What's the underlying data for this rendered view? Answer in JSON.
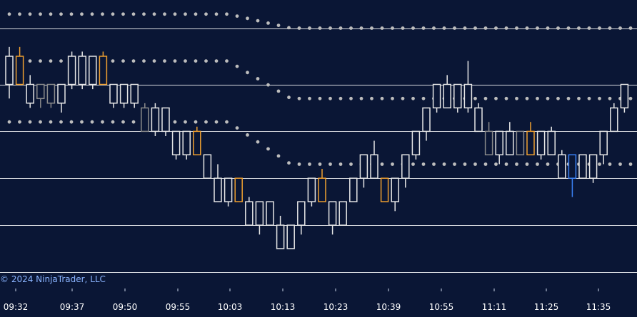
{
  "chart_data": {
    "type": "candlestick",
    "title": "",
    "xlabel": "",
    "ylabel": "",
    "grid": true,
    "copyright": "© 2024 NinjaTrader, LLC",
    "time_ticks": [
      "09:32",
      "09:37",
      "09:50",
      "09:55",
      "10:03",
      "10:13",
      "10:23",
      "10:39",
      "10:55",
      "11:11",
      "11:25",
      "11:35"
    ],
    "colors": {
      "background": "#0a1635",
      "up": "#e6e6e6",
      "down": "#e6e6e6",
      "highlight": "#f0a030",
      "gray": "#8b8b8b",
      "blue": "#3b82f6",
      "grid": "#ffffff",
      "dots": "#bdbdbd"
    },
    "bars": [
      {
        "o": 5.0,
        "h": 5.8,
        "l": 4.7,
        "c": 5.6,
        "color": "up"
      },
      {
        "o": 5.0,
        "h": 5.8,
        "l": 5.0,
        "c": 5.6,
        "color": "highlight"
      },
      {
        "o": 4.6,
        "h": 5.2,
        "l": 4.5,
        "c": 5.0,
        "color": "up"
      },
      {
        "o": 4.7,
        "h": 5.0,
        "l": 4.5,
        "c": 5.0,
        "color": "gray"
      },
      {
        "o": 4.6,
        "h": 5.0,
        "l": 4.5,
        "c": 5.0,
        "color": "gray"
      },
      {
        "o": 5.0,
        "h": 5.0,
        "l": 4.4,
        "c": 4.6,
        "color": "up"
      },
      {
        "o": 5.0,
        "h": 5.7,
        "l": 4.9,
        "c": 5.6,
        "color": "up"
      },
      {
        "o": 5.0,
        "h": 5.7,
        "l": 4.9,
        "c": 5.6,
        "color": "up"
      },
      {
        "o": 5.6,
        "h": 5.6,
        "l": 4.9,
        "c": 5.0,
        "color": "up"
      },
      {
        "o": 5.0,
        "h": 5.7,
        "l": 5.0,
        "c": 5.6,
        "color": "highlight"
      },
      {
        "o": 4.6,
        "h": 5.0,
        "l": 4.5,
        "c": 5.0,
        "color": "up"
      },
      {
        "o": 4.6,
        "h": 5.0,
        "l": 4.5,
        "c": 5.0,
        "color": "up"
      },
      {
        "o": 4.6,
        "h": 5.0,
        "l": 4.5,
        "c": 5.0,
        "color": "up"
      },
      {
        "o": 4.0,
        "h": 4.6,
        "l": 4.0,
        "c": 4.5,
        "color": "gray"
      },
      {
        "o": 4.0,
        "h": 4.6,
        "l": 3.9,
        "c": 4.5,
        "color": "up"
      },
      {
        "o": 4.0,
        "h": 4.5,
        "l": 3.9,
        "c": 4.5,
        "color": "up"
      },
      {
        "o": 4.0,
        "h": 4.0,
        "l": 3.4,
        "c": 3.5,
        "color": "up"
      },
      {
        "o": 4.0,
        "h": 4.0,
        "l": 3.4,
        "c": 3.5,
        "color": "up"
      },
      {
        "o": 3.5,
        "h": 4.1,
        "l": 3.5,
        "c": 4.0,
        "color": "highlight"
      },
      {
        "o": 3.5,
        "h": 3.5,
        "l": 3.0,
        "c": 3.0,
        "color": "up"
      },
      {
        "o": 2.5,
        "h": 3.3,
        "l": 2.5,
        "c": 3.0,
        "color": "up"
      },
      {
        "o": 2.5,
        "h": 3.0,
        "l": 2.4,
        "c": 3.0,
        "color": "up"
      },
      {
        "o": 2.5,
        "h": 3.0,
        "l": 2.5,
        "c": 3.0,
        "color": "highlight"
      },
      {
        "o": 2.0,
        "h": 2.6,
        "l": 2.0,
        "c": 2.5,
        "color": "up"
      },
      {
        "o": 2.0,
        "h": 2.5,
        "l": 1.8,
        "c": 2.5,
        "color": "up"
      },
      {
        "o": 2.0,
        "h": 2.5,
        "l": 2.0,
        "c": 2.5,
        "color": "up"
      },
      {
        "o": 1.5,
        "h": 2.2,
        "l": 1.5,
        "c": 2.0,
        "color": "up"
      },
      {
        "o": 1.5,
        "h": 2.0,
        "l": 1.5,
        "c": 2.0,
        "color": "up"
      },
      {
        "o": 2.0,
        "h": 2.5,
        "l": 1.8,
        "c": 2.5,
        "color": "up"
      },
      {
        "o": 2.5,
        "h": 3.0,
        "l": 2.4,
        "c": 3.0,
        "color": "up"
      },
      {
        "o": 2.5,
        "h": 3.2,
        "l": 2.5,
        "c": 3.0,
        "color": "highlight"
      },
      {
        "o": 2.0,
        "h": 2.5,
        "l": 1.8,
        "c": 2.5,
        "color": "up"
      },
      {
        "o": 2.0,
        "h": 2.5,
        "l": 2.0,
        "c": 2.5,
        "color": "up"
      },
      {
        "o": 2.5,
        "h": 3.0,
        "l": 2.5,
        "c": 3.0,
        "color": "up"
      },
      {
        "o": 3.0,
        "h": 3.5,
        "l": 2.8,
        "c": 3.5,
        "color": "up"
      },
      {
        "o": 3.0,
        "h": 3.8,
        "l": 3.0,
        "c": 3.5,
        "color": "up"
      },
      {
        "o": 2.5,
        "h": 3.0,
        "l": 2.5,
        "c": 3.0,
        "color": "highlight"
      },
      {
        "o": 2.5,
        "h": 3.0,
        "l": 2.3,
        "c": 3.0,
        "color": "up"
      },
      {
        "o": 3.0,
        "h": 3.5,
        "l": 2.8,
        "c": 3.5,
        "color": "up"
      },
      {
        "o": 3.5,
        "h": 4.0,
        "l": 3.4,
        "c": 4.0,
        "color": "up"
      },
      {
        "o": 4.0,
        "h": 4.5,
        "l": 3.8,
        "c": 4.5,
        "color": "up"
      },
      {
        "o": 4.5,
        "h": 5.0,
        "l": 4.4,
        "c": 5.0,
        "color": "up"
      },
      {
        "o": 4.5,
        "h": 5.2,
        "l": 4.5,
        "c": 5.0,
        "color": "up"
      },
      {
        "o": 4.5,
        "h": 5.0,
        "l": 4.4,
        "c": 5.0,
        "color": "up"
      },
      {
        "o": 4.5,
        "h": 5.5,
        "l": 4.4,
        "c": 5.0,
        "color": "up"
      },
      {
        "o": 4.0,
        "h": 4.6,
        "l": 4.0,
        "c": 4.5,
        "color": "up"
      },
      {
        "o": 3.5,
        "h": 4.2,
        "l": 3.5,
        "c": 4.0,
        "color": "gray"
      },
      {
        "o": 3.5,
        "h": 4.0,
        "l": 3.3,
        "c": 4.0,
        "color": "up"
      },
      {
        "o": 3.5,
        "h": 4.2,
        "l": 3.5,
        "c": 4.0,
        "color": "up"
      },
      {
        "o": 3.5,
        "h": 4.0,
        "l": 3.5,
        "c": 4.0,
        "color": "gray"
      },
      {
        "o": 3.5,
        "h": 4.2,
        "l": 3.5,
        "c": 4.0,
        "color": "highlight"
      },
      {
        "o": 3.5,
        "h": 4.0,
        "l": 3.4,
        "c": 4.0,
        "color": "up"
      },
      {
        "o": 3.5,
        "h": 4.1,
        "l": 3.5,
        "c": 4.0,
        "color": "up"
      },
      {
        "o": 3.0,
        "h": 3.6,
        "l": 3.0,
        "c": 3.5,
        "color": "up"
      },
      {
        "o": 3.0,
        "h": 3.5,
        "l": 2.6,
        "c": 3.5,
        "color": "blue"
      },
      {
        "o": 3.0,
        "h": 3.5,
        "l": 3.0,
        "c": 3.5,
        "color": "up"
      },
      {
        "o": 3.0,
        "h": 3.5,
        "l": 2.9,
        "c": 3.5,
        "color": "up"
      },
      {
        "o": 3.5,
        "h": 4.0,
        "l": 3.3,
        "c": 4.0,
        "color": "up"
      },
      {
        "o": 4.0,
        "h": 4.6,
        "l": 4.0,
        "c": 4.5,
        "color": "up"
      },
      {
        "o": 4.5,
        "h": 5.0,
        "l": 4.4,
        "c": 5.0,
        "color": "up"
      }
    ],
    "dot_bands": [
      {
        "name": "upper",
        "pre": 6.5,
        "post": 6.2,
        "transition_from": 21,
        "transition_to": 27
      },
      {
        "name": "middle",
        "pre": 5.5,
        "post": 4.7,
        "transition_from": 21,
        "transition_to": 27
      },
      {
        "name": "lower",
        "pre": 4.2,
        "post": 3.3,
        "transition_from": 21,
        "transition_to": 27
      }
    ],
    "horizontal_levels": [
      6.2,
      5.0,
      4.0,
      3.0,
      2.0,
      1.0
    ]
  }
}
